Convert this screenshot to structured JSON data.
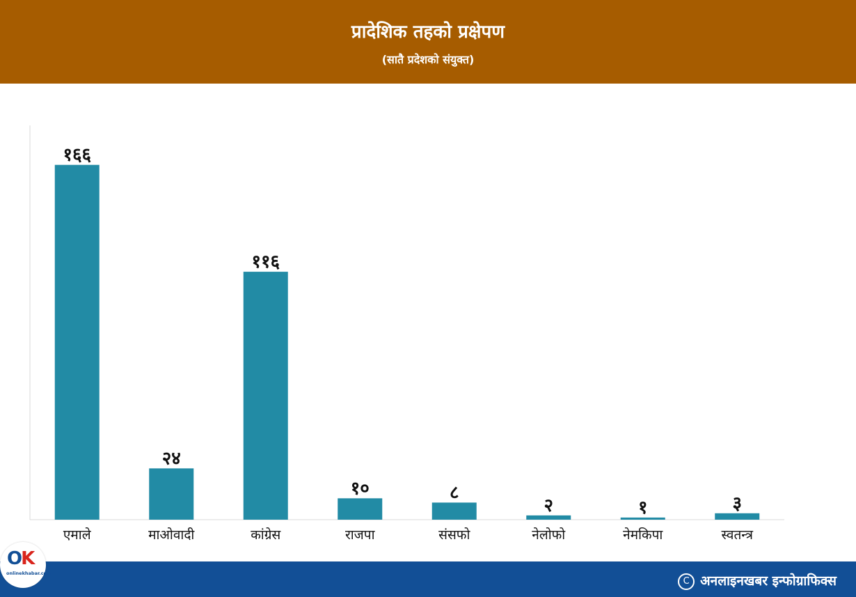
{
  "header": {
    "title": "प्रादेशिक तहको प्रक्षेपण",
    "subtitle": "(सातै प्रदेशको संयुक्त)"
  },
  "footer": {
    "credit": "अनलाइनखबर इन्फोग्राफिक्स",
    "copyright_icon": "copyright-icon"
  },
  "logo": {
    "mark_o": "O",
    "mark_k": "K",
    "wordmark": "onlinekhabar.com"
  },
  "colors": {
    "header_bg": "#a65c00",
    "footer_bg": "#124f96",
    "bar": "#228ba5",
    "axis": "#d9d9d9"
  },
  "chart_data": {
    "type": "bar",
    "categories": [
      "एमाले",
      "माओवादी",
      "कांग्रेस",
      "राजपा",
      "संसफो",
      "नेलोफो",
      "नेमकिपा",
      "स्वतन्त्र"
    ],
    "values": [
      166,
      24,
      116,
      10,
      8,
      2,
      1,
      3
    ],
    "data_labels": [
      "१६६",
      "२४",
      "११६",
      "१०",
      "८",
      "२",
      "१",
      "३"
    ],
    "ylim": [
      0,
      176
    ],
    "grid": false,
    "legend": "none"
  }
}
